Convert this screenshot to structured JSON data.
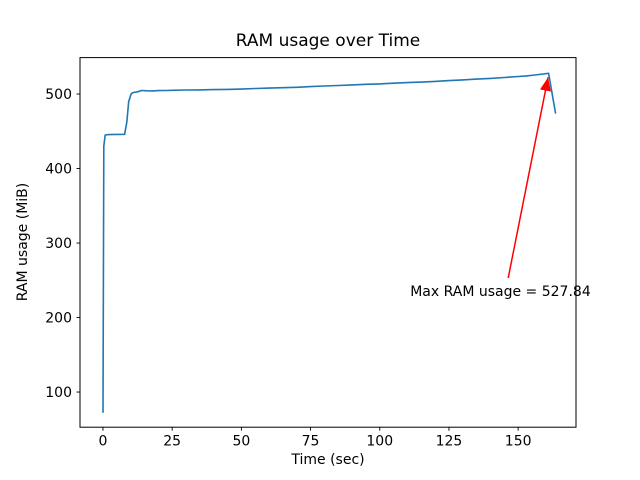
{
  "chart_data": {
    "type": "line",
    "title": "RAM usage over Time",
    "xlabel": "Time (sec)",
    "ylabel": "RAM usage (MiB)",
    "xlim": [
      -8.3,
      170.9
    ],
    "ylim": [
      52.8,
      548.9
    ],
    "xticks": [
      0,
      25,
      50,
      75,
      100,
      125,
      150
    ],
    "yticks": [
      100,
      200,
      300,
      400,
      500
    ],
    "grid": false,
    "legend": null,
    "line_color": "#1f77b4",
    "background_color": "#ffffff",
    "series": [
      {
        "name": "RAM usage",
        "points": [
          [
            0,
            73
          ],
          [
            0.3,
            430
          ],
          [
            0.8,
            445
          ],
          [
            2,
            445.5
          ],
          [
            7.8,
            446
          ],
          [
            8.6,
            462
          ],
          [
            9.3,
            490
          ],
          [
            10.2,
            500.5
          ],
          [
            11,
            502
          ],
          [
            12.5,
            503
          ],
          [
            14,
            504.8
          ],
          [
            16,
            504.3
          ],
          [
            18,
            504.2
          ],
          [
            20,
            504.6
          ],
          [
            23,
            504.8
          ],
          [
            25,
            505
          ],
          [
            30,
            505.4
          ],
          [
            35,
            505.6
          ],
          [
            40,
            506
          ],
          [
            45,
            506.2
          ],
          [
            50,
            506.6
          ],
          [
            55,
            507.4
          ],
          [
            60,
            508
          ],
          [
            65,
            508.5
          ],
          [
            70,
            509
          ],
          [
            75,
            510
          ],
          [
            80,
            510.8
          ],
          [
            85,
            511.4
          ],
          [
            90,
            512.3
          ],
          [
            95,
            513
          ],
          [
            100,
            513.6
          ],
          [
            105,
            514.5
          ],
          [
            110,
            515.4
          ],
          [
            115,
            516
          ],
          [
            120,
            517
          ],
          [
            125,
            518
          ],
          [
            130,
            519
          ],
          [
            135,
            520
          ],
          [
            140,
            521
          ],
          [
            145,
            522.2
          ],
          [
            150,
            523.5
          ],
          [
            153,
            524.4
          ],
          [
            156,
            525.6
          ],
          [
            159,
            526.9
          ],
          [
            161,
            527.84
          ],
          [
            163.5,
            474.5
          ]
        ]
      }
    ],
    "annotation": {
      "text": "Max RAM usage = 527.84",
      "color": "#ff0000",
      "xy": [
        161,
        527.84
      ],
      "xytext": [
        111,
        229
      ]
    }
  }
}
